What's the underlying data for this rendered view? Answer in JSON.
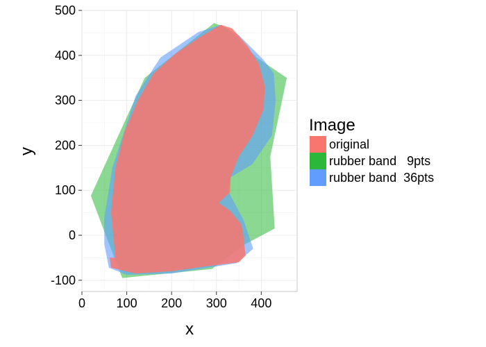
{
  "chart_data": {
    "type": "area",
    "xlabel": "x",
    "ylabel": "y",
    "xlim": [
      0,
      480
    ],
    "ylim": [
      -125,
      500
    ],
    "xticks": [
      0,
      100,
      200,
      300,
      400
    ],
    "yticks": [
      -100,
      0,
      100,
      200,
      300,
      400,
      500
    ],
    "grid": true,
    "legend": {
      "title": "Image",
      "placement": "right"
    },
    "series": [
      {
        "name": "rubber band   9pts",
        "color": "#2bb838",
        "opacity": 0.55,
        "polygon": [
          [
            20,
            88
          ],
          [
            140,
            350
          ],
          [
            295,
            472
          ],
          [
            325,
            460
          ],
          [
            390,
            395
          ],
          [
            457,
            350
          ],
          [
            420,
            175
          ],
          [
            430,
            15
          ],
          [
            360,
            -22
          ],
          [
            290,
            -75
          ],
          [
            90,
            -95
          ],
          [
            55,
            -5
          ]
        ]
      },
      {
        "name": "rubber band  36pts",
        "color": "#619cff",
        "opacity": 0.6,
        "polygon": [
          [
            50,
            40
          ],
          [
            68,
            150
          ],
          [
            120,
            310
          ],
          [
            175,
            395
          ],
          [
            260,
            452
          ],
          [
            310,
            468
          ],
          [
            350,
            445
          ],
          [
            405,
            390
          ],
          [
            428,
            360
          ],
          [
            432,
            300
          ],
          [
            424,
            222
          ],
          [
            380,
            158
          ],
          [
            330,
            128
          ],
          [
            325,
            100
          ],
          [
            360,
            35
          ],
          [
            382,
            -30
          ],
          [
            345,
            -62
          ],
          [
            200,
            -85
          ],
          [
            100,
            -88
          ],
          [
            60,
            -72
          ],
          [
            50,
            -20
          ]
        ]
      },
      {
        "name": "original",
        "color": "#f8766d",
        "opacity": 0.85,
        "polygon": [
          [
            75,
            -50
          ],
          [
            65,
            50
          ],
          [
            75,
            150
          ],
          [
            95,
            230
          ],
          [
            125,
            300
          ],
          [
            160,
            360
          ],
          [
            210,
            405
          ],
          [
            262,
            440
          ],
          [
            310,
            468
          ],
          [
            335,
            460
          ],
          [
            370,
            420
          ],
          [
            395,
            380
          ],
          [
            408,
            330
          ],
          [
            405,
            280
          ],
          [
            380,
            220
          ],
          [
            350,
            175
          ],
          [
            332,
            130
          ],
          [
            330,
            95
          ],
          [
            305,
            72
          ],
          [
            330,
            55
          ],
          [
            355,
            25
          ],
          [
            360,
            0
          ],
          [
            365,
            -45
          ],
          [
            350,
            -60
          ],
          [
            270,
            -70
          ],
          [
            200,
            -80
          ],
          [
            120,
            -85
          ],
          [
            65,
            -72
          ],
          [
            62,
            -50
          ]
        ]
      }
    ]
  }
}
